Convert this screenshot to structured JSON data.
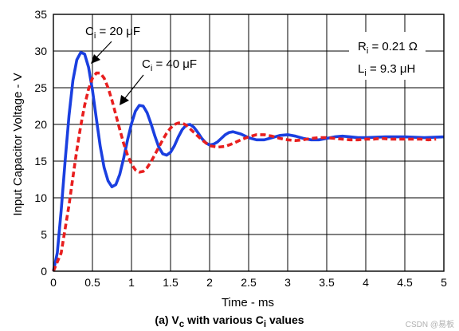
{
  "caption": {
    "prefix": "(a) V",
    "sub1": "c",
    "mid": " with various C",
    "sub2": "i",
    "suffix": " values"
  },
  "watermark": "CSDN @易板",
  "annotations": {
    "ci20": {
      "c": "C",
      "sub": "i",
      "rest": " = 20 μF"
    },
    "ci40": {
      "c": "C",
      "sub": "i",
      "rest": " = 40 μF"
    },
    "ri": {
      "c": "R",
      "sub": "i",
      "rest": " = 0.21 Ω"
    },
    "li": {
      "c": "L",
      "sub": "i",
      "rest": " = 9.3 μH"
    }
  },
  "colors": {
    "ci20": "#1a3fe0",
    "ci40": "#e81f1f",
    "grid": "#000000"
  },
  "chart_data": {
    "type": "line",
    "title": "",
    "xlabel": "Time - ms",
    "ylabel": "Input Capacitor Voltage - V",
    "xlim": [
      0,
      5
    ],
    "ylim": [
      0,
      35
    ],
    "xticks": [
      "0",
      "0.5",
      "1",
      "1.5",
      "2",
      "2.5",
      "3",
      "3.5",
      "4",
      "4.5",
      "5"
    ],
    "yticks": [
      "0",
      "5",
      "10",
      "15",
      "20",
      "25",
      "30",
      "35"
    ],
    "grid": true,
    "series": [
      {
        "name": "Ci = 20 μF",
        "style": "solid",
        "x": [
          0,
          0.05,
          0.1,
          0.15,
          0.2,
          0.25,
          0.3,
          0.35,
          0.4,
          0.45,
          0.5,
          0.55,
          0.6,
          0.65,
          0.7,
          0.75,
          0.8,
          0.85,
          0.9,
          0.95,
          1.0,
          1.05,
          1.1,
          1.15,
          1.2,
          1.25,
          1.3,
          1.35,
          1.4,
          1.45,
          1.5,
          1.55,
          1.6,
          1.65,
          1.7,
          1.75,
          1.8,
          1.85,
          1.9,
          1.95,
          2.0,
          2.05,
          2.1,
          2.15,
          2.2,
          2.25,
          2.3,
          2.4,
          2.5,
          2.6,
          2.7,
          2.8,
          2.9,
          3.0,
          3.1,
          3.2,
          3.3,
          3.4,
          3.5,
          3.6,
          3.7,
          3.8,
          3.9,
          4.0,
          4.25,
          4.5,
          4.75,
          5.0
        ],
        "y": [
          0,
          2.5,
          8.3,
          15.0,
          21.2,
          26.0,
          28.8,
          29.8,
          29.6,
          27.8,
          24.7,
          20.8,
          17.0,
          14.1,
          12.3,
          11.5,
          11.8,
          13.2,
          15.4,
          17.9,
          20.1,
          21.8,
          22.6,
          22.5,
          21.6,
          20.1,
          18.4,
          16.9,
          16.0,
          15.8,
          16.2,
          17.1,
          18.3,
          19.3,
          19.9,
          20.0,
          19.6,
          18.9,
          18.1,
          17.5,
          17.2,
          17.3,
          17.6,
          18.1,
          18.6,
          18.9,
          19.0,
          18.7,
          18.2,
          17.9,
          17.9,
          18.2,
          18.5,
          18.6,
          18.4,
          18.1,
          17.9,
          17.9,
          18.1,
          18.3,
          18.4,
          18.3,
          18.2,
          18.2,
          18.3,
          18.3,
          18.2,
          18.3
        ]
      },
      {
        "name": "Ci = 40 μF",
        "style": "dashed",
        "x": [
          0,
          0.1,
          0.2,
          0.25,
          0.3,
          0.35,
          0.4,
          0.45,
          0.5,
          0.55,
          0.6,
          0.65,
          0.7,
          0.75,
          0.8,
          0.85,
          0.9,
          0.95,
          1.0,
          1.05,
          1.1,
          1.15,
          1.2,
          1.25,
          1.3,
          1.35,
          1.4,
          1.45,
          1.5,
          1.55,
          1.6,
          1.65,
          1.7,
          1.75,
          1.8,
          1.85,
          1.9,
          1.95,
          2.0,
          2.1,
          2.2,
          2.3,
          2.4,
          2.5,
          2.6,
          2.7,
          2.8,
          2.9,
          3.0,
          3.1,
          3.2,
          3.3,
          3.4,
          3.5,
          3.6,
          3.7,
          3.8,
          3.9,
          4.0,
          4.1,
          4.2,
          4.3,
          4.4,
          4.5,
          4.6,
          4.7,
          4.8,
          4.9
        ],
        "y": [
          0,
          2.5,
          9.0,
          12.8,
          16.5,
          19.8,
          22.6,
          24.8,
          26.3,
          27.0,
          27.0,
          26.3,
          25.0,
          23.3,
          21.3,
          19.3,
          17.4,
          15.8,
          14.6,
          13.8,
          13.5,
          13.6,
          14.1,
          14.9,
          15.9,
          16.9,
          17.9,
          18.8,
          19.5,
          20.0,
          20.2,
          20.2,
          19.9,
          19.4,
          18.9,
          18.4,
          17.9,
          17.5,
          17.1,
          16.9,
          17.0,
          17.4,
          17.9,
          18.3,
          18.6,
          18.6,
          18.4,
          18.1,
          17.9,
          17.8,
          17.9,
          18.1,
          18.2,
          18.2,
          18.1,
          18.0,
          17.9,
          17.9,
          18.0,
          18.0,
          18.1,
          18.0,
          18.0,
          18.0,
          18.0,
          18.0,
          17.9,
          18.0
        ]
      }
    ]
  }
}
